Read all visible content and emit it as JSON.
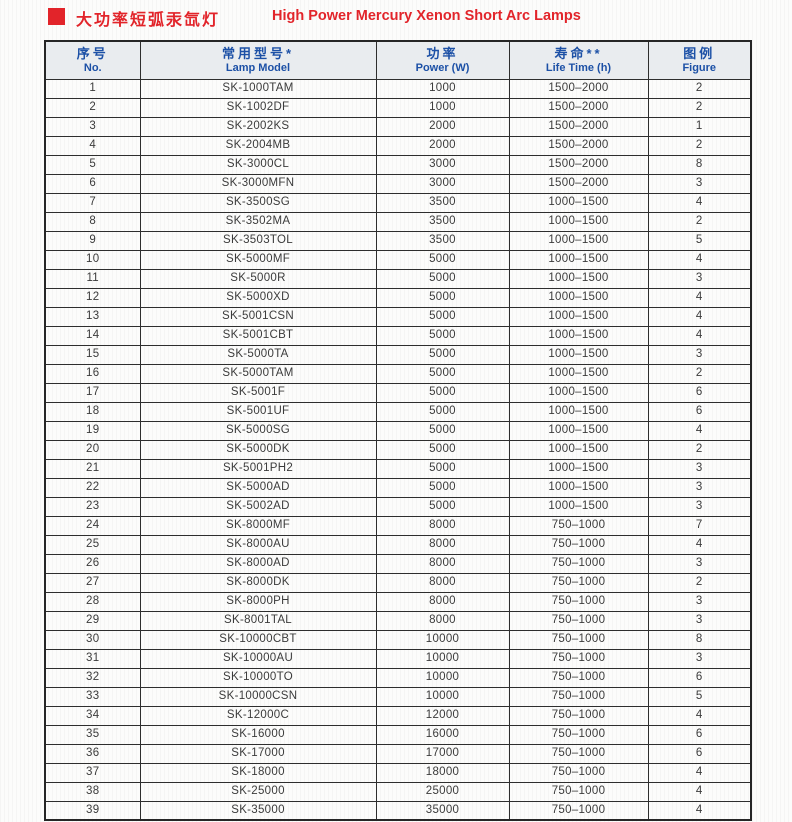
{
  "page": {
    "title_zh": "大功率短弧汞氙灯",
    "title_en": "High Power Mercury Xenon Short Arc Lamps",
    "accent_red": "#e2242a",
    "header_blue": "#1c50a6",
    "bullet_icon": "red-square"
  },
  "table": {
    "columns": [
      {
        "zh": "序号",
        "en": "No."
      },
      {
        "zh": "常用型号*",
        "en": "Lamp Model"
      },
      {
        "zh": "功率",
        "en": "Power (W)"
      },
      {
        "zh": "寿命**",
        "en": "Life Time (h)"
      },
      {
        "zh": "图例",
        "en": "Figure"
      }
    ],
    "rows": [
      [
        "1",
        "SK-1000TAM",
        "1000",
        "1500–2000",
        "2"
      ],
      [
        "2",
        "SK-1002DF",
        "1000",
        "1500–2000",
        "2"
      ],
      [
        "3",
        "SK-2002KS",
        "2000",
        "1500–2000",
        "1"
      ],
      [
        "4",
        "SK-2004MB",
        "2000",
        "1500–2000",
        "2"
      ],
      [
        "5",
        "SK-3000CL",
        "3000",
        "1500–2000",
        "8"
      ],
      [
        "6",
        "SK-3000MFN",
        "3000",
        "1500–2000",
        "3"
      ],
      [
        "7",
        "SK-3500SG",
        "3500",
        "1000–1500",
        "4"
      ],
      [
        "8",
        "SK-3502MA",
        "3500",
        "1000–1500",
        "2"
      ],
      [
        "9",
        "SK-3503TOL",
        "3500",
        "1000–1500",
        "5"
      ],
      [
        "10",
        "SK-5000MF",
        "5000",
        "1000–1500",
        "4"
      ],
      [
        "11",
        "SK-5000R",
        "5000",
        "1000–1500",
        "3"
      ],
      [
        "12",
        "SK-5000XD",
        "5000",
        "1000–1500",
        "4"
      ],
      [
        "13",
        "SK-5001CSN",
        "5000",
        "1000–1500",
        "4"
      ],
      [
        "14",
        "SK-5001CBT",
        "5000",
        "1000–1500",
        "4"
      ],
      [
        "15",
        "SK-5000TA",
        "5000",
        "1000–1500",
        "3"
      ],
      [
        "16",
        "SK-5000TAM",
        "5000",
        "1000–1500",
        "2"
      ],
      [
        "17",
        "SK-5001F",
        "5000",
        "1000–1500",
        "6"
      ],
      [
        "18",
        "SK-5001UF",
        "5000",
        "1000–1500",
        "6"
      ],
      [
        "19",
        "SK-5000SG",
        "5000",
        "1000–1500",
        "4"
      ],
      [
        "20",
        "SK-5000DK",
        "5000",
        "1000–1500",
        "2"
      ],
      [
        "21",
        "SK-5001PH2",
        "5000",
        "1000–1500",
        "3"
      ],
      [
        "22",
        "SK-5000AD",
        "5000",
        "1000–1500",
        "3"
      ],
      [
        "23",
        "SK-5002AD",
        "5000",
        "1000–1500",
        "3"
      ],
      [
        "24",
        "SK-8000MF",
        "8000",
        "750–1000",
        "7"
      ],
      [
        "25",
        "SK-8000AU",
        "8000",
        "750–1000",
        "4"
      ],
      [
        "26",
        "SK-8000AD",
        "8000",
        "750–1000",
        "3"
      ],
      [
        "27",
        "SK-8000DK",
        "8000",
        "750–1000",
        "2"
      ],
      [
        "28",
        "SK-8000PH",
        "8000",
        "750–1000",
        "3"
      ],
      [
        "29",
        "SK-8001TAL",
        "8000",
        "750–1000",
        "3"
      ],
      [
        "30",
        "SK-10000CBT",
        "10000",
        "750–1000",
        "8"
      ],
      [
        "31",
        "SK-10000AU",
        "10000",
        "750–1000",
        "3"
      ],
      [
        "32",
        "SK-10000TO",
        "10000",
        "750–1000",
        "6"
      ],
      [
        "33",
        "SK-10000CSN",
        "10000",
        "750–1000",
        "5"
      ],
      [
        "34",
        "SK-12000C",
        "12000",
        "750–1000",
        "4"
      ],
      [
        "35",
        "SK-16000",
        "16000",
        "750–1000",
        "6"
      ],
      [
        "36",
        "SK-17000",
        "17000",
        "750–1000",
        "6"
      ],
      [
        "37",
        "SK-18000",
        "18000",
        "750–1000",
        "4"
      ],
      [
        "38",
        "SK-25000",
        "25000",
        "750–1000",
        "4"
      ],
      [
        "39",
        "SK-35000",
        "35000",
        "750–1000",
        "4"
      ]
    ]
  }
}
